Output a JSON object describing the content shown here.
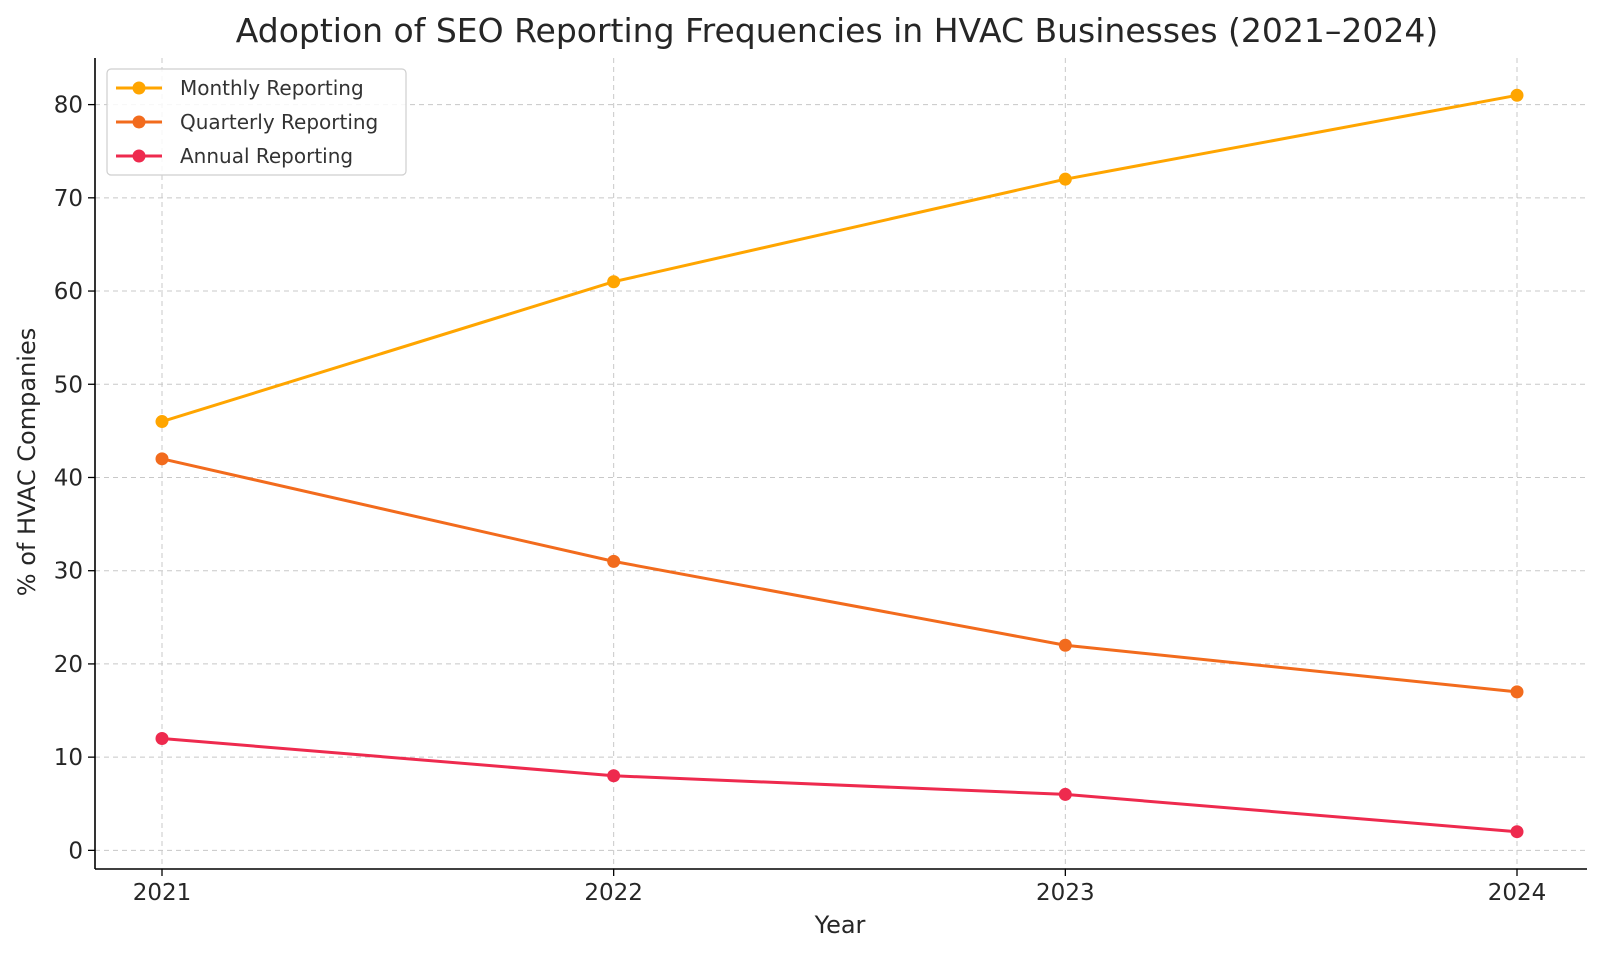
{
  "chart_data": {
    "type": "line",
    "title": "Adoption of SEO Reporting Frequencies in HVAC Businesses (2021–2024)",
    "xlabel": "Year",
    "ylabel": "% of HVAC Companies",
    "categories": [
      "2021",
      "2022",
      "2023",
      "2024"
    ],
    "series": [
      {
        "name": "Monthly Reporting",
        "color": "#FFA500",
        "values": [
          46,
          61,
          72,
          81
        ]
      },
      {
        "name": "Quarterly Reporting",
        "color": "#F26B1D",
        "values": [
          42,
          31,
          22,
          17
        ]
      },
      {
        "name": "Annual Reporting",
        "color": "#EE2A4E",
        "values": [
          12,
          8,
          6,
          2
        ]
      }
    ],
    "ylim": [
      -2,
      85
    ],
    "yticks": [
      0,
      10,
      20,
      30,
      40,
      50,
      60,
      70,
      80
    ],
    "grid": true,
    "legend_position": "top-left",
    "marker": "circle"
  }
}
